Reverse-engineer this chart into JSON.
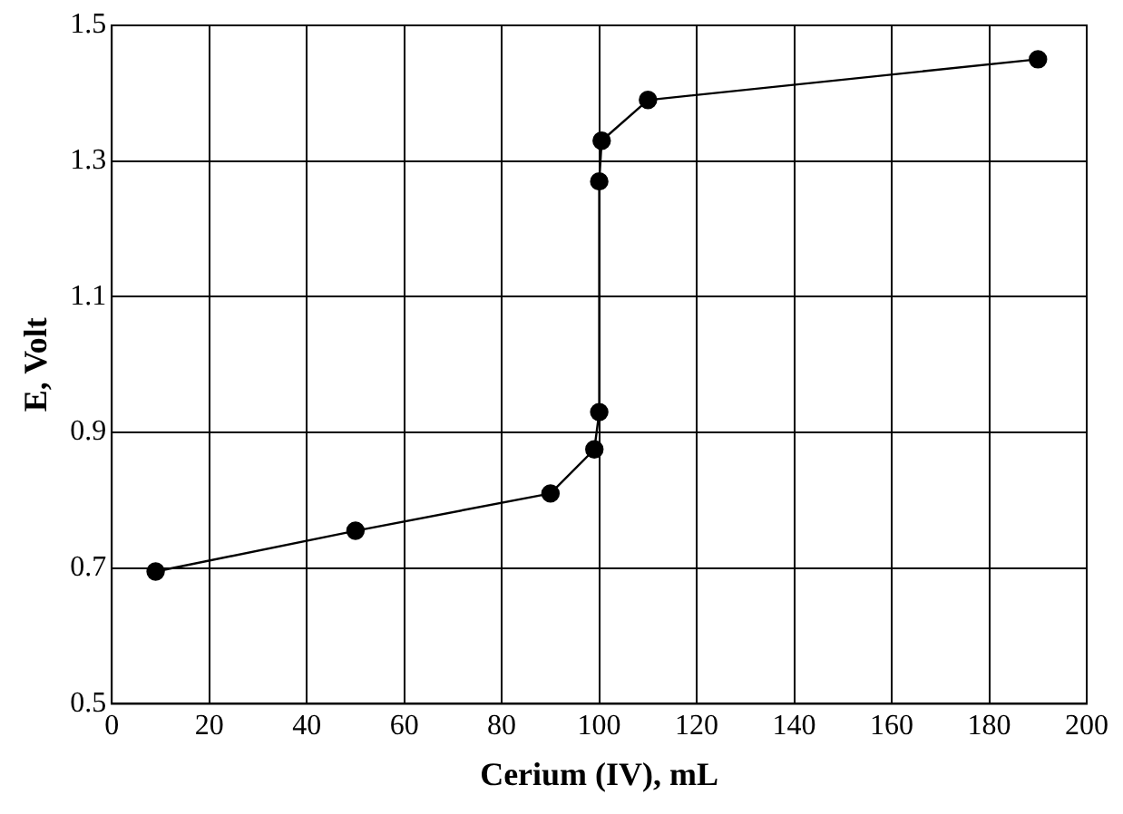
{
  "chart_data": {
    "type": "line",
    "xlabel": "Cerium (IV), mL",
    "ylabel": "E, Volt",
    "x": [
      9,
      50,
      90,
      99,
      100,
      100,
      100.5,
      110,
      190
    ],
    "series": [
      {
        "color": "#000000",
        "values": [
          0.695,
          0.755,
          0.81,
          0.875,
          0.93,
          1.27,
          1.33,
          1.39,
          1.45
        ]
      }
    ],
    "xlim": [
      0,
      200
    ],
    "xticks": [
      0,
      20,
      40,
      60,
      80,
      100,
      120,
      140,
      160,
      180,
      200
    ],
    "ylim": [
      0.5,
      1.5
    ],
    "yticks": [
      0.5,
      0.7,
      0.9,
      1.1,
      1.3,
      1.5
    ],
    "grid": true,
    "legend": false,
    "marker": "circle",
    "line_style": "solid"
  }
}
